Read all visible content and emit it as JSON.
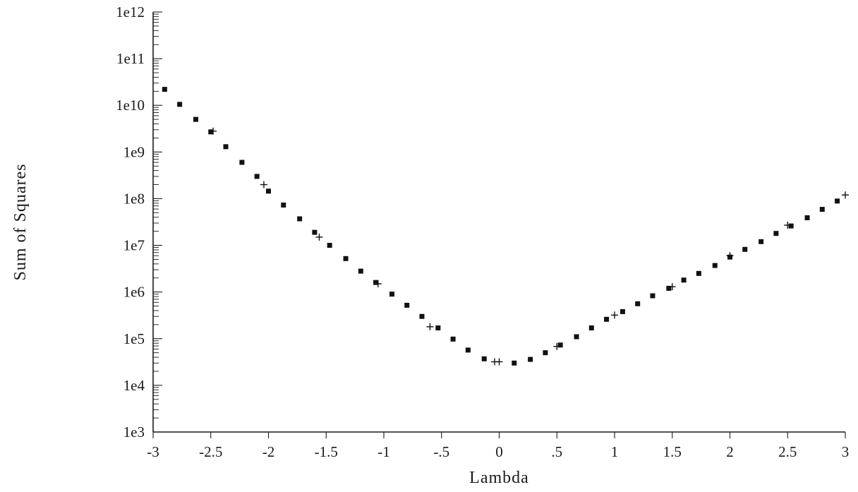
{
  "chart_data": {
    "type": "scatter",
    "xlabel": "Lambda",
    "ylabel": "Sum of Squares",
    "xlim": [
      -3,
      3
    ],
    "ylim": [
      1000,
      1000000000000
    ],
    "y_scale": "log",
    "grid": false,
    "x_ticks": [
      -3,
      -2.5,
      -2,
      -1.5,
      -1,
      -0.5,
      0,
      0.5,
      1,
      1.5,
      2,
      2.5,
      3
    ],
    "x_tick_labels": [
      "-3",
      "-2.5",
      "-2",
      "-1.5",
      "-1",
      "-.5",
      "0",
      ".5",
      "1",
      "1.5",
      "2",
      "2.5",
      "3"
    ],
    "y_ticks": [
      1000,
      10000,
      100000,
      1000000,
      10000000,
      100000000,
      1000000000,
      10000000000,
      100000000000,
      1000000000000
    ],
    "y_tick_labels": [
      "1e3",
      "1e4",
      "1e5",
      "1e6",
      "1e7",
      "1e8",
      "1e9",
      "1e10",
      "1e11",
      "1e12"
    ],
    "series": [
      {
        "marker": "square",
        "x": [
          -2.9,
          -2.77,
          -2.63,
          -2.5,
          -2.37,
          -2.23,
          -2.1,
          -2.0,
          -1.87,
          -1.73,
          -1.6,
          -1.47,
          -1.33,
          -1.2,
          -1.07,
          -0.93,
          -0.8,
          -0.67,
          -0.53,
          -0.4,
          -0.27,
          -0.13,
          0.13,
          0.27,
          0.4,
          0.53,
          0.67,
          0.8,
          0.93,
          1.07,
          1.2,
          1.33,
          1.47,
          1.6,
          1.73,
          1.87,
          2.0,
          2.13,
          2.27,
          2.4,
          2.53,
          2.67,
          2.8,
          2.93
        ],
        "y": [
          22000000000,
          10500000000,
          5000000000,
          2700000000,
          1300000000,
          600000000,
          300000000,
          145000000,
          73000000,
          37000000,
          19000000,
          10000000,
          5200000,
          2800000,
          1600000,
          900000,
          520000,
          300000,
          170000,
          98000,
          57000,
          37000,
          30000,
          36000,
          50000,
          73000,
          110000,
          170000,
          260000,
          380000,
          560000,
          830000,
          1200000,
          1800000,
          2500000,
          3700000,
          5600000,
          8200000,
          12000000,
          18000000,
          26000000,
          39000000,
          59000000,
          89000000
        ]
      },
      {
        "marker": "plus",
        "x": [
          -2.48,
          -2.04,
          -1.56,
          -1.05,
          -0.6,
          -0.04,
          0.0,
          0.5,
          1.0,
          1.5,
          2.0,
          2.5,
          3.0
        ],
        "y": [
          2800000000,
          200000000,
          15000000,
          1500000,
          180000,
          32000,
          32000,
          68000,
          320000,
          1300000,
          6000000,
          27000000,
          120000000
        ]
      }
    ]
  }
}
